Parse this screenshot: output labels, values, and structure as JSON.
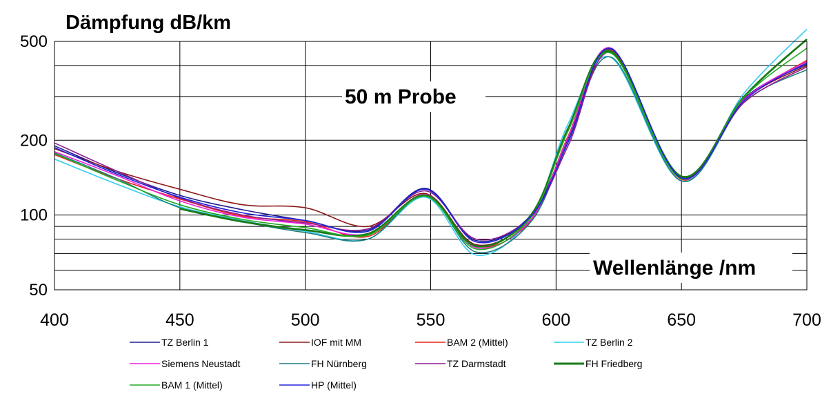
{
  "chart_data": {
    "type": "line",
    "title": "Dämpfung dB/km",
    "annotation": "50 m Probe",
    "xlabel": "Wellenlänge /nm",
    "xlim": [
      400,
      700
    ],
    "ylim": [
      50,
      500
    ],
    "yscale": "log",
    "grid": true,
    "xticks": [
      "400",
      "450",
      "500",
      "550",
      "600",
      "650",
      "700"
    ],
    "yticks": [
      "500",
      "200",
      "100",
      "50"
    ],
    "legend_position": "bottom",
    "x": [
      400,
      425,
      450,
      475,
      500,
      525,
      548,
      568,
      590,
      605,
      622,
      650,
      675,
      700
    ],
    "series": [
      {
        "name": "TZ Berlin 1",
        "color": "#1f1f8f",
        "values": [
          190,
          148,
          120,
          105,
          95,
          87,
          128,
          79,
          100,
          205,
          465,
          142,
          295,
          405
        ]
      },
      {
        "name": "IOF mit MM",
        "color": "#8b1a1a",
        "values": [
          185,
          150,
          127,
          110,
          107,
          90,
          122,
          76,
          98,
          200,
          455,
          141,
          290,
          400
        ]
      },
      {
        "name": "BAM 2 (Mittel)",
        "color": "#e8241c",
        "values": [
          175,
          140,
          116,
          99,
          94,
          82,
          120,
          75,
          95,
          210,
          460,
          139,
          288,
          420
        ]
      },
      {
        "name": "TZ Berlin 2",
        "color": "#33ccee",
        "values": [
          168,
          133,
          108,
          95,
          86,
          80,
          118,
          69,
          98,
          235,
          430,
          137,
          310,
          560
        ]
      },
      {
        "name": "Siemens Neustadt",
        "color": "#ee22dd",
        "values": [
          180,
          144,
          114,
          98,
          92,
          84,
          121,
          74,
          96,
          208,
          470,
          140,
          292,
          415
        ]
      },
      {
        "name": "FH Nürnberg",
        "color": "#1f7f7f",
        "values": [
          178,
          140,
          107,
          94,
          85,
          80,
          120,
          71,
          94,
          200,
          432,
          137,
          285,
          385
        ]
      },
      {
        "name": "TZ Darmstadt",
        "color": "#8f1f8f",
        "values": [
          195,
          150,
          117,
          100,
          93,
          88,
          125,
          80,
          99,
          192,
          452,
          143,
          284,
          395
        ]
      },
      {
        "name": "FH Friedberg",
        "color": "#1a7a1a",
        "values": [
          null,
          null,
          106,
          94,
          87,
          84,
          120,
          75,
          100,
          225,
          455,
          143,
          300,
          510
        ]
      },
      {
        "name": "BAM 1 (Mittel)",
        "color": "#22aa22",
        "values": [
          177,
          138,
          110,
          96,
          89,
          83,
          119,
          73,
          98,
          220,
          448,
          140,
          298,
          470
        ]
      },
      {
        "name": "HP (Mittel)",
        "color": "#2222dd",
        "values": [
          187,
          146,
          118,
          102,
          95,
          86,
          127,
          78,
          99,
          198,
          468,
          141,
          289,
          410
        ]
      }
    ]
  }
}
